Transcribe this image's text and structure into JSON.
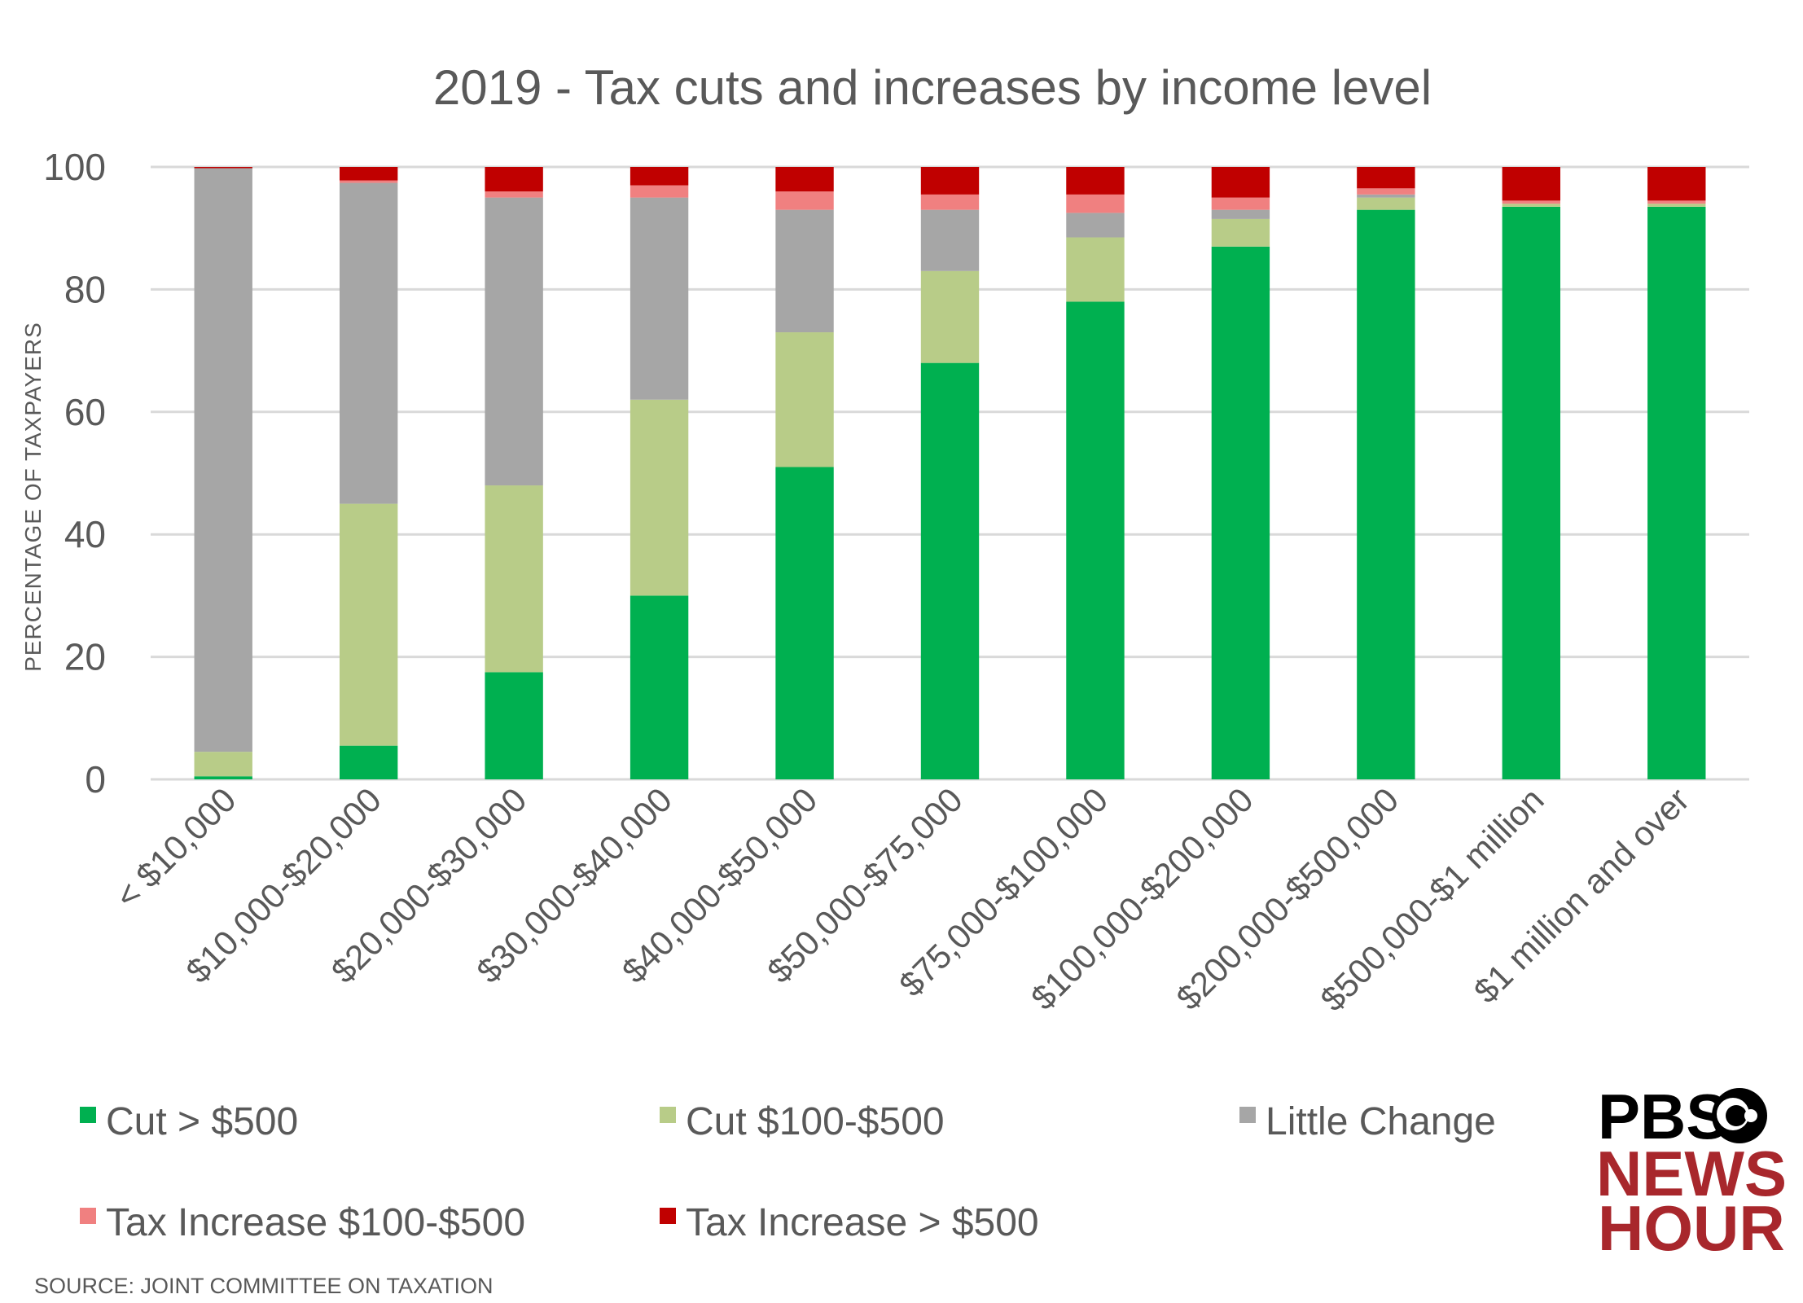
{
  "chart_data": {
    "type": "bar",
    "stacked": true,
    "title": "2019 - Tax cuts and increases by income level",
    "xlabel": "",
    "ylabel": "PERCENTAGE OF TAXPAYERS",
    "ylim": [
      0,
      100
    ],
    "yticks": [
      "0",
      "20",
      "40",
      "60",
      "80",
      "100"
    ],
    "grid": true,
    "legend_position": "bottom",
    "categories": [
      "< $10,000",
      "$10,000-$20,000",
      "$20,000-$30,000",
      "$30,000-$40,000",
      "$40,000-$50,000",
      "$50,000-$75,000",
      "$75,000-$100,000",
      "$100,000-$200,000",
      "$200,000-$500,000",
      "$500,000-$1 million",
      "$1 million and over"
    ],
    "series": [
      {
        "name": "Cut > $500",
        "color": "#00b050",
        "values": [
          0.5,
          5.5,
          17.5,
          30,
          51,
          68,
          78,
          87,
          93,
          93.5,
          93.5
        ]
      },
      {
        "name": "Cut $100-$500",
        "color": "#b8cc88",
        "values": [
          4,
          39.5,
          30.5,
          32,
          22,
          15,
          10.5,
          4.5,
          2,
          0.5,
          0.5
        ]
      },
      {
        "name": "Little Change",
        "color": "#a6a6a6",
        "values": [
          95.3,
          52.4,
          47,
          33,
          20,
          10,
          4,
          1.5,
          0.5,
          0,
          0
        ]
      },
      {
        "name": "Tax Increase $100-$500",
        "color": "#f08080",
        "values": [
          0,
          0.4,
          1,
          2,
          3,
          2.5,
          3,
          2,
          1,
          0.5,
          0.5
        ]
      },
      {
        "name": "Tax Increase > $500",
        "color": "#c00000",
        "values": [
          0.2,
          2.2,
          4,
          3,
          4,
          4.5,
          4.5,
          5,
          3.5,
          5.5,
          5.5
        ]
      }
    ],
    "source": "SOURCE: JOINT COMMITTEE ON TAXATION"
  },
  "logo": {
    "line1": "PBS",
    "line2": "NEWS",
    "line3": "HOUR"
  }
}
